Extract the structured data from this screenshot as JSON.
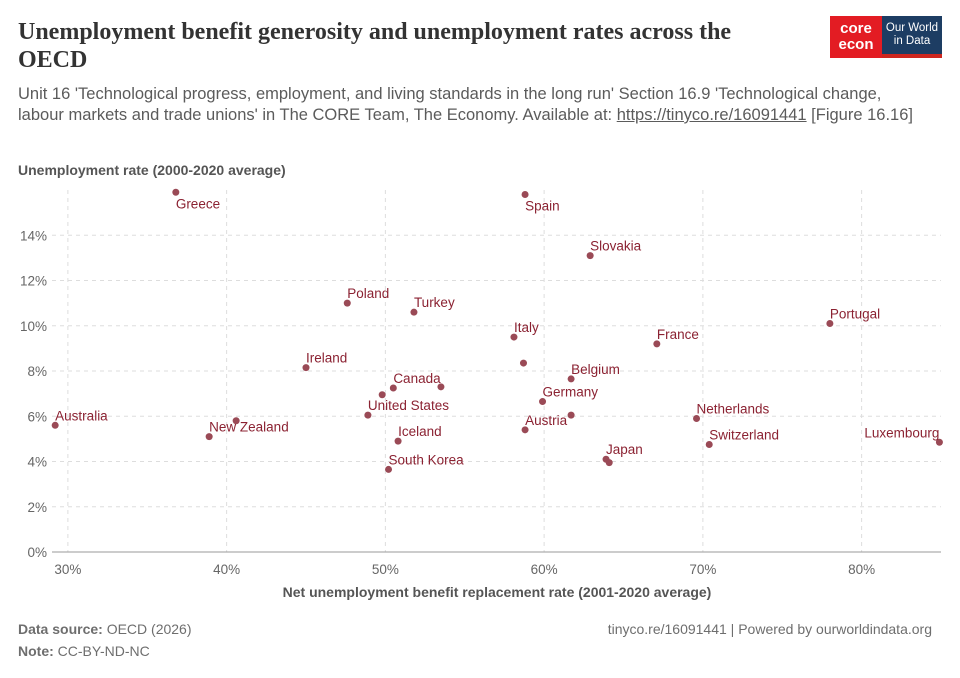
{
  "header": {
    "title": "Unemployment benefit generosity and unemployment rates across the OECD",
    "subtitle_text": "Unit 16 'Technological progress, employment, and living standards in the long run' Section 16.9 'Technological change, labour markets and trade unions' in The CORE Team, The Economy. Available at: ",
    "subtitle_link": "https://tinyco.re/16091441",
    "subtitle_end": " [Figure 16.16]"
  },
  "logo": {
    "core_top": "core",
    "core_bottom": "econ",
    "owid_top": "Our World",
    "owid_bottom": "in Data"
  },
  "colors": {
    "point": "#9a4a56",
    "label": "#8b2232",
    "grid": "#dddddd"
  },
  "chart_data": {
    "type": "scatter",
    "ylabel": "Unemployment rate (2000-2020 average)",
    "xlabel": "Net unemployment benefit replacement rate (2001-2020 average)",
    "xlim": [
      29,
      85
    ],
    "ylim": [
      0,
      16
    ],
    "x_ticks": [
      30,
      40,
      50,
      60,
      70,
      80
    ],
    "y_ticks": [
      0,
      2,
      4,
      6,
      8,
      10,
      12,
      14
    ],
    "x_tick_suffix": "%",
    "y_tick_suffix": "%",
    "grid": true,
    "points": [
      {
        "label": "Greece",
        "x": 36.8,
        "y": 15.9
      },
      {
        "label": "Spain",
        "x": 58.8,
        "y": 15.8
      },
      {
        "label": "Slovakia",
        "x": 62.9,
        "y": 13.1
      },
      {
        "label": "Poland",
        "x": 47.6,
        "y": 11.0
      },
      {
        "label": "Turkey",
        "x": 51.8,
        "y": 10.6
      },
      {
        "label": "Portugal",
        "x": 78.0,
        "y": 10.1
      },
      {
        "label": "Italy",
        "x": 58.1,
        "y": 9.5
      },
      {
        "label": "France",
        "x": 67.1,
        "y": 9.2
      },
      {
        "label": "",
        "x": 58.7,
        "y": 8.35
      },
      {
        "label": "Ireland",
        "x": 45.0,
        "y": 8.15
      },
      {
        "label": "Belgium",
        "x": 61.7,
        "y": 7.65
      },
      {
        "label": "Canada",
        "x": 50.5,
        "y": 7.25
      },
      {
        "label": "",
        "x": 53.5,
        "y": 7.3
      },
      {
        "label": "",
        "x": 49.8,
        "y": 6.95
      },
      {
        "label": "Germany",
        "x": 59.9,
        "y": 6.65
      },
      {
        "label": "United States",
        "x": 48.9,
        "y": 6.05
      },
      {
        "label": "",
        "x": 61.7,
        "y": 6.05
      },
      {
        "label": "Netherlands",
        "x": 69.6,
        "y": 5.9
      },
      {
        "label": "",
        "x": 40.6,
        "y": 5.8
      },
      {
        "label": "Australia",
        "x": 29.2,
        "y": 5.6
      },
      {
        "label": "Austria",
        "x": 58.8,
        "y": 5.4
      },
      {
        "label": "New Zealand",
        "x": 38.9,
        "y": 5.1
      },
      {
        "label": "Iceland",
        "x": 50.8,
        "y": 4.9
      },
      {
        "label": "Switzerland",
        "x": 70.4,
        "y": 4.75
      },
      {
        "label": "Luxembourg",
        "x": 84.9,
        "y": 4.85
      },
      {
        "label": "Japan",
        "x": 63.9,
        "y": 4.1
      },
      {
        "label": "",
        "x": 64.1,
        "y": 3.95
      },
      {
        "label": "South Korea",
        "x": 50.2,
        "y": 3.65
      }
    ]
  },
  "footer": {
    "source_label": "Data source:",
    "source_value": " OECD (2026)",
    "note_label": "Note:",
    "note_value": " CC-BY-ND-NC",
    "right": "tinyco.re/16091441 | Powered by ourworldindata.org"
  }
}
